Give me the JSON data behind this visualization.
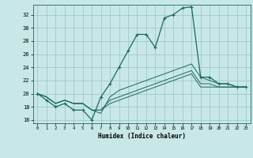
{
  "xlabel": "Humidex (Indice chaleur)",
  "background_color": "#c8e8e8",
  "grid_color": "#a0c8c8",
  "line_color": "#1a6860",
  "xlim": [
    -0.5,
    23.5
  ],
  "ylim": [
    15.5,
    33.5
  ],
  "xticks": [
    0,
    1,
    2,
    3,
    4,
    5,
    6,
    7,
    8,
    9,
    10,
    11,
    12,
    13,
    14,
    15,
    16,
    17,
    18,
    19,
    20,
    21,
    22,
    23
  ],
  "yticks": [
    16,
    18,
    20,
    22,
    24,
    26,
    28,
    30,
    32
  ],
  "series": [
    [
      20.0,
      19.0,
      18.0,
      18.5,
      17.5,
      17.5,
      16.0,
      19.5,
      21.5,
      24.0,
      26.5,
      29.0,
      29.0,
      27.0,
      31.5,
      32.0,
      33.0,
      33.2,
      22.5,
      22.5,
      21.5,
      21.5,
      21.0,
      21.0
    ],
    [
      20.0,
      19.5,
      18.5,
      19.0,
      18.5,
      18.5,
      17.5,
      17.0,
      19.5,
      20.5,
      21.0,
      21.5,
      22.0,
      22.5,
      23.0,
      23.5,
      24.0,
      24.5,
      22.5,
      22.0,
      21.5,
      21.5,
      21.0,
      21.0
    ],
    [
      20.0,
      19.5,
      18.5,
      19.0,
      18.5,
      18.5,
      17.5,
      17.5,
      19.0,
      19.5,
      20.0,
      20.5,
      21.0,
      21.5,
      22.0,
      22.5,
      23.0,
      23.5,
      21.5,
      21.5,
      21.0,
      21.0,
      21.0,
      21.0
    ],
    [
      20.0,
      19.5,
      18.5,
      19.0,
      18.5,
      18.5,
      17.5,
      17.5,
      18.5,
      19.0,
      19.5,
      20.0,
      20.5,
      21.0,
      21.5,
      22.0,
      22.5,
      23.0,
      21.0,
      21.0,
      21.0,
      21.0,
      21.0,
      21.0
    ]
  ]
}
